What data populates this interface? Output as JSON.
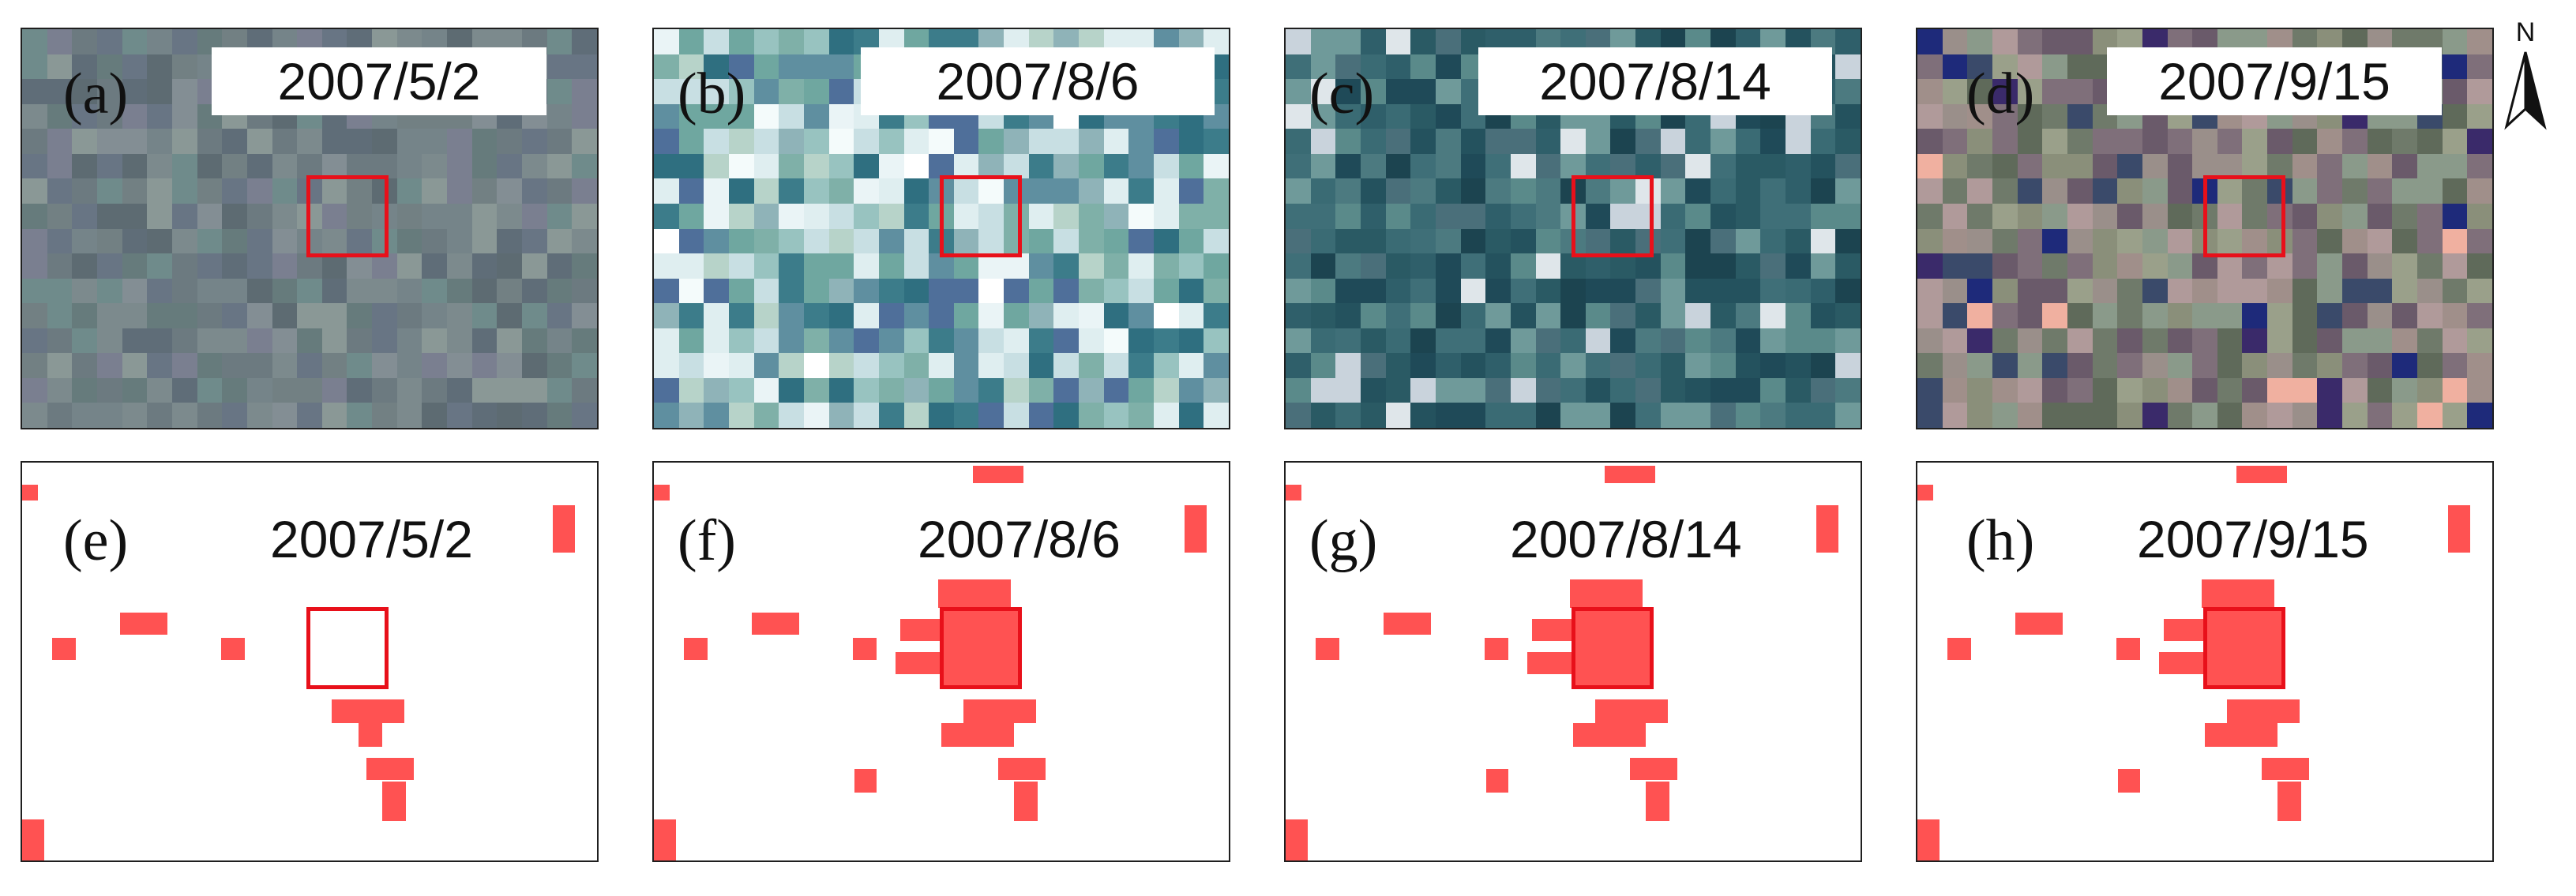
{
  "figure": {
    "north_label": "N",
    "north_arrow_icon": "north-arrow-icon",
    "colors": {
      "frame": "#1f1f1f",
      "focus_box": "#e8101a",
      "mask_fill": "#ff5252",
      "background": "#ffffff"
    },
    "image_panels": [
      {
        "label": "(a)",
        "date": "2007/5/2"
      },
      {
        "label": "(b)",
        "date": "2007/8/6"
      },
      {
        "label": "(c)",
        "date": "2007/8/14"
      },
      {
        "label": "(d)",
        "date": "2007/9/15"
      }
    ],
    "mask_panels": [
      {
        "label": "(e)",
        "date": "2007/5/2",
        "focus_filled": false
      },
      {
        "label": "(f)",
        "date": "2007/8/6",
        "focus_filled": true
      },
      {
        "label": "(g)",
        "date": "2007/8/14",
        "focus_filled": true
      },
      {
        "label": "(h)",
        "date": "2007/9/15",
        "focus_filled": true
      }
    ]
  }
}
